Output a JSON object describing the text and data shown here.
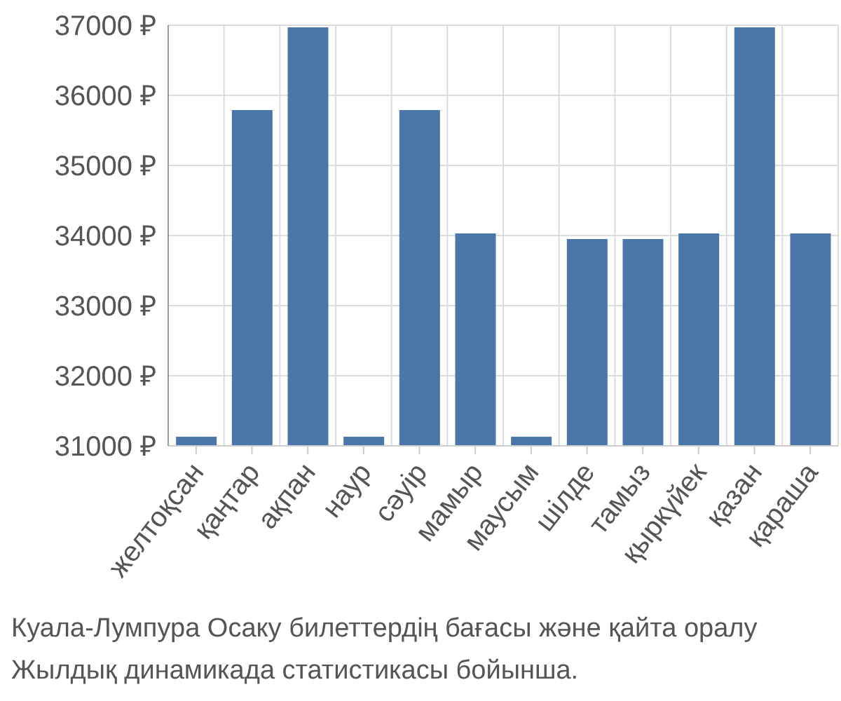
{
  "chart_data": {
    "type": "bar",
    "categories": [
      "желтоқсан",
      "қаңтар",
      "ақпан",
      "наур",
      "сәуір",
      "мамыр",
      "маусым",
      "шілде",
      "тамыз",
      "қыркүйек",
      "қазан",
      "қараша"
    ],
    "values": [
      31130,
      35790,
      36970,
      31130,
      35790,
      34030,
      31130,
      33950,
      33950,
      34030,
      36970,
      34030
    ],
    "color": "#4a76a8",
    "ylim": [
      31000,
      37000
    ],
    "yticks": [
      {
        "value": 31000,
        "label": "31000 ₽"
      },
      {
        "value": 32000,
        "label": "32000 ₽"
      },
      {
        "value": 33000,
        "label": "33000 ₽"
      },
      {
        "value": 34000,
        "label": "34000 ₽"
      },
      {
        "value": 35000,
        "label": "35000 ₽"
      },
      {
        "value": 36000,
        "label": "36000 ₽"
      },
      {
        "value": 37000,
        "label": "37000 ₽"
      }
    ],
    "grid": true,
    "annotations": [
      "Куала-Лумпура Осаку билеттердің бағасы және қайта оралу",
      "Жылдық динамикада статистикасы бойынша."
    ]
  }
}
